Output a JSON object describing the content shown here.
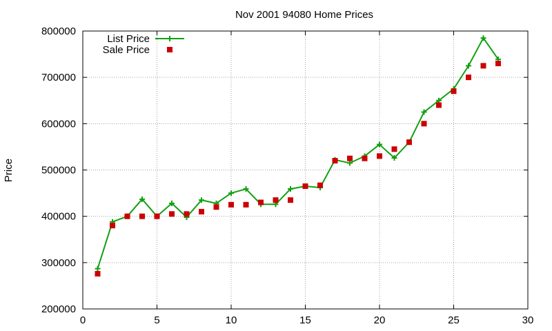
{
  "chart_data": {
    "type": "line",
    "title": "Nov 2001 94080 Home Prices",
    "xlabel": "",
    "ylabel": "Price",
    "xlim": [
      0,
      30
    ],
    "ylim": [
      200000,
      800000
    ],
    "xticks": [
      0,
      5,
      10,
      15,
      20,
      25,
      30
    ],
    "yticks": [
      200000,
      300000,
      400000,
      500000,
      600000,
      700000,
      800000
    ],
    "xtick_labels": [
      "0",
      "5",
      "10",
      "15",
      "20",
      "25",
      "30"
    ],
    "ytick_labels": [
      "200000",
      "300000",
      "400000",
      "500000",
      "600000",
      "700000",
      "800000"
    ],
    "grid": true,
    "legend_position": "top-left",
    "x": [
      1,
      2,
      3,
      4,
      5,
      6,
      7,
      8,
      9,
      10,
      11,
      12,
      13,
      14,
      15,
      16,
      17,
      18,
      19,
      20,
      21,
      22,
      23,
      24,
      25,
      26,
      27,
      28
    ],
    "series": [
      {
        "name": "List Price",
        "style": "line-plus",
        "color": "#11a011",
        "values": [
          287000,
          388000,
          400000,
          437000,
          400000,
          428000,
          398000,
          435000,
          428000,
          450000,
          459000,
          426000,
          426000,
          459000,
          465000,
          462000,
          522000,
          515000,
          530000,
          555000,
          526000,
          560000,
          625000,
          650000,
          675000,
          725000,
          785000,
          739000
        ]
      },
      {
        "name": "Sale Price",
        "style": "square-markers",
        "color": "#cc0000",
        "values": [
          276000,
          380000,
          400000,
          400000,
          400000,
          405000,
          405000,
          410000,
          420000,
          425000,
          425000,
          430000,
          435000,
          435000,
          465000,
          467000,
          520000,
          525000,
          525000,
          530000,
          545000,
          560000,
          600000,
          640000,
          670000,
          700000,
          725000,
          730000
        ]
      }
    ]
  }
}
